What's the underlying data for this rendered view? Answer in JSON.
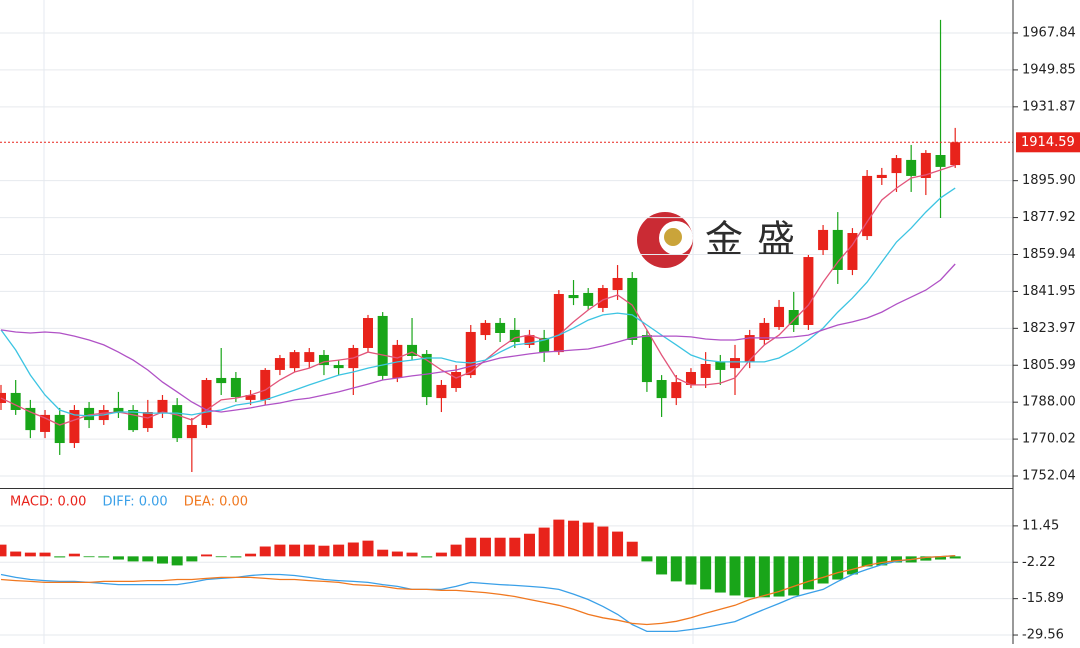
{
  "chart_data": [
    {
      "type": "candlestick",
      "watermark": "金盛",
      "ylim": [
        1746.2,
        1983.9
      ],
      "yticks": [
        1967.84,
        1949.85,
        1931.87,
        {
          "value": 1895.9,
          "label": "1895.90"
        },
        1877.92,
        1859.94,
        1841.95,
        1823.97,
        1805.99,
        {
          "value": 1788.0,
          "label": "1788.00"
        },
        1770.02,
        1752.04
      ],
      "grid": true,
      "up_color": "#e8231b",
      "down_color": "#19a519",
      "ohlc": {
        "open": [
          1787.6,
          1792.5,
          1785.2,
          1773.5,
          1781.8,
          1768.1,
          1785.2,
          1779.3,
          1785.2,
          1784.2,
          1775.4,
          1782.7,
          1786.6,
          1770.5,
          1776.9,
          1799.8,
          1799.8,
          1789.1,
          1789.1,
          1803.7,
          1804.6,
          1807.6,
          1811.0,
          1806.1,
          1804.6,
          1814.4,
          1830.0,
          1799.8,
          1815.9,
          1811.5,
          1790.0,
          1794.9,
          1801.2,
          1820.7,
          1826.6,
          1823.2,
          1815.9,
          1819.3,
          1812.4,
          1840.2,
          1841.2,
          1833.9,
          1842.6,
          1848.5,
          1820.7,
          1798.8,
          1790.0,
          1796.4,
          1799.8,
          1807.6,
          1804.6,
          1807.6,
          1818.3,
          1824.6,
          1832.9,
          1825.6,
          1862.1,
          1871.9,
          1852.4,
          1868.9,
          1897.2,
          1899.6,
          1906.0,
          1897.2,
          1908.4,
          1903.5
        ],
        "high": [
          1796.4,
          1798.8,
          1789.1,
          1784.2,
          1785.2,
          1786.6,
          1788.1,
          1786.6,
          1793.0,
          1786.6,
          1789.1,
          1791.5,
          1790.0,
          1780.3,
          1799.8,
          1814.4,
          1802.7,
          1793.9,
          1804.6,
          1811.0,
          1813.4,
          1814.4,
          1813.4,
          1808.5,
          1815.9,
          1830.5,
          1831.9,
          1818.3,
          1829.0,
          1813.4,
          1798.8,
          1806.1,
          1825.6,
          1828.0,
          1829.0,
          1829.0,
          1823.2,
          1823.2,
          1842.6,
          1847.5,
          1843.6,
          1845.1,
          1854.8,
          1851.4,
          1823.2,
          1801.2,
          1801.2,
          1804.6,
          1812.4,
          1811.0,
          1815.9,
          1823.2,
          1829.0,
          1837.8,
          1841.7,
          1859.7,
          1874.3,
          1880.6,
          1872.8,
          1901.1,
          1902.1,
          1908.4,
          1913.3,
          1910.8,
          1974.2,
          1921.6
        ],
        "low": [
          1784.2,
          1781.8,
          1770.5,
          1770.5,
          1762.3,
          1765.7,
          1775.4,
          1776.9,
          1780.3,
          1773.5,
          1773.5,
          1780.3,
          1768.6,
          1754.0,
          1775.4,
          1791.5,
          1788.1,
          1786.6,
          1786.6,
          1801.2,
          1802.7,
          1804.6,
          1801.2,
          1801.2,
          1791.5,
          1812.4,
          1798.8,
          1797.8,
          1808.5,
          1786.6,
          1783.2,
          1793.0,
          1799.8,
          1818.3,
          1817.3,
          1814.4,
          1814.4,
          1807.6,
          1811.0,
          1835.3,
          1832.9,
          1831.9,
          1837.8,
          1815.9,
          1793.0,
          1780.8,
          1786.6,
          1794.9,
          1794.9,
          1796.4,
          1791.5,
          1804.6,
          1815.9,
          1823.2,
          1822.2,
          1823.2,
          1859.7,
          1845.6,
          1849.9,
          1867.0,
          1893.8,
          1890.4,
          1890.4,
          1888.9,
          1877.7,
          1902.1
        ],
        "close": [
          1792.5,
          1784.2,
          1774.4,
          1781.8,
          1768.1,
          1784.2,
          1779.3,
          1784.2,
          1782.7,
          1774.4,
          1783.2,
          1789.1,
          1770.5,
          1776.9,
          1798.8,
          1797.3,
          1790.5,
          1791.5,
          1803.7,
          1809.5,
          1812.4,
          1812.4,
          1806.1,
          1804.6,
          1814.4,
          1829.0,
          1800.8,
          1815.9,
          1810.5,
          1790.5,
          1796.4,
          1802.7,
          1822.2,
          1826.6,
          1821.7,
          1817.3,
          1820.7,
          1812.4,
          1840.7,
          1838.7,
          1834.9,
          1843.6,
          1848.5,
          1818.3,
          1797.8,
          1790.0,
          1797.8,
          1802.7,
          1806.6,
          1803.7,
          1809.5,
          1820.7,
          1826.6,
          1834.4,
          1825.6,
          1858.7,
          1871.9,
          1852.4,
          1870.4,
          1898.2,
          1898.7,
          1906.9,
          1898.2,
          1909.4,
          1902.6,
          1914.59
        ]
      },
      "series": [
        {
          "color": "#e2557a",
          "values": [
            1790.0,
            1786.6,
            1783.2,
            1780.3,
            1776.9,
            1779.3,
            1781.8,
            1782.7,
            1783.2,
            1781.8,
            1780.3,
            1783.2,
            1781.8,
            1779.3,
            1784.2,
            1789.1,
            1790.0,
            1791.5,
            1793.9,
            1798.8,
            1802.7,
            1804.6,
            1807.6,
            1808.5,
            1809.5,
            1812.4,
            1811.0,
            1809.5,
            1812.4,
            1808.5,
            1803.7,
            1799.8,
            1802.7,
            1808.5,
            1814.4,
            1819.3,
            1820.7,
            1818.3,
            1820.7,
            1827.1,
            1832.9,
            1837.8,
            1840.2,
            1835.3,
            1823.2,
            1811.0,
            1799.8,
            1796.4,
            1796.4,
            1797.3,
            1799.8,
            1808.5,
            1815.9,
            1820.7,
            1828.0,
            1835.3,
            1846.5,
            1856.3,
            1864.6,
            1875.8,
            1886.5,
            1892.3,
            1897.2,
            1898.7,
            1901.1,
            1903.5
          ]
        },
        {
          "color": "#3cc4e2",
          "values": [
            1823.2,
            1813.4,
            1801.2,
            1791.5,
            1784.2,
            1781.8,
            1781.3,
            1781.8,
            1783.2,
            1783.2,
            1782.7,
            1782.7,
            1782.7,
            1781.8,
            1783.2,
            1784.2,
            1786.6,
            1787.6,
            1789.1,
            1791.5,
            1793.9,
            1796.4,
            1798.8,
            1801.2,
            1802.7,
            1804.6,
            1806.1,
            1807.6,
            1808.5,
            1809.5,
            1809.5,
            1807.6,
            1807.1,
            1808.5,
            1812.4,
            1815.9,
            1816.8,
            1818.3,
            1820.7,
            1824.1,
            1828.0,
            1830.5,
            1831.4,
            1830.5,
            1825.6,
            1820.7,
            1815.9,
            1811.0,
            1808.5,
            1807.6,
            1807.6,
            1807.6,
            1807.6,
            1809.5,
            1813.4,
            1818.3,
            1824.1,
            1831.9,
            1838.7,
            1846.5,
            1856.3,
            1866.0,
            1872.8,
            1880.6,
            1887.5,
            1892.3
          ]
        },
        {
          "color": "#b052c6",
          "values": [
            1823.2,
            1822.2,
            1821.7,
            1822.2,
            1821.7,
            1820.2,
            1818.3,
            1815.9,
            1812.4,
            1808.5,
            1803.7,
            1797.8,
            1793.0,
            1788.1,
            1784.2,
            1783.2,
            1784.2,
            1785.2,
            1786.6,
            1787.6,
            1789.1,
            1790.0,
            1791.5,
            1793.0,
            1794.9,
            1796.8,
            1798.8,
            1799.8,
            1800.8,
            1801.7,
            1802.7,
            1803.7,
            1805.6,
            1807.6,
            1809.5,
            1810.5,
            1811.5,
            1812.4,
            1812.9,
            1813.4,
            1813.9,
            1815.4,
            1817.3,
            1819.3,
            1820.2,
            1820.2,
            1820.2,
            1819.8,
            1818.8,
            1818.3,
            1818.3,
            1819.3,
            1819.3,
            1819.3,
            1819.8,
            1820.7,
            1823.2,
            1825.6,
            1827.1,
            1829.0,
            1831.9,
            1835.8,
            1839.2,
            1842.6,
            1847.5,
            1855.3
          ]
        }
      ]
    },
    {
      "type": "macd",
      "legend": [
        "MACD: 0.00",
        "DIFF: 0.00",
        "DEA: 0.00"
      ],
      "legend_colors": [
        "#e8231b",
        "#3aa0e8",
        "#f07820"
      ],
      "ylim": [
        -32.93,
        24.93
      ],
      "yticks": [
        11.45,
        -2.22,
        -15.89,
        -29.56
      ],
      "grid": true,
      "up_color": "#e8231b",
      "down_color": "#19a519",
      "histogram": [
        4.4,
        1.8,
        1.4,
        1.4,
        -0.4,
        1.0,
        -0.2,
        -0.4,
        -1.2,
        -1.9,
        -1.9,
        -2.7,
        -3.4,
        -1.9,
        0.7,
        -0.2,
        -0.4,
        1.0,
        3.7,
        4.4,
        4.4,
        4.4,
        4.0,
        4.4,
        5.2,
        5.9,
        2.5,
        1.8,
        1.4,
        -0.4,
        1.4,
        4.4,
        7.0,
        7.0,
        7.0,
        7.0,
        8.5,
        10.8,
        13.8,
        13.4,
        12.7,
        11.2,
        9.3,
        5.5,
        -1.9,
        -6.8,
        -9.4,
        -10.6,
        -12.4,
        -13.6,
        -14.7,
        -15.4,
        -15.4,
        -15.1,
        -14.7,
        -12.4,
        -10.2,
        -8.7,
        -6.8,
        -3.8,
        -3.4,
        -2.3,
        -2.3,
        -1.6,
        -1.2,
        -0.8
      ],
      "series": [
        {
          "color": "#3aa0e8",
          "values": [
            -6.8,
            -7.9,
            -8.7,
            -9.1,
            -9.4,
            -9.4,
            -9.8,
            -10.2,
            -10.6,
            -10.6,
            -10.6,
            -10.6,
            -10.6,
            -9.8,
            -8.7,
            -8.3,
            -7.9,
            -7.2,
            -6.8,
            -6.8,
            -7.2,
            -7.9,
            -8.7,
            -9.1,
            -9.4,
            -9.8,
            -10.6,
            -11.3,
            -12.4,
            -12.4,
            -12.4,
            -11.3,
            -9.8,
            -10.2,
            -10.6,
            -10.9,
            -11.3,
            -11.7,
            -12.4,
            -14.2,
            -16.2,
            -18.8,
            -21.8,
            -25.6,
            -28.2,
            -28.2,
            -28.2,
            -27.5,
            -26.7,
            -25.6,
            -24.5,
            -22.2,
            -19.9,
            -17.7,
            -15.4,
            -13.9,
            -12.4,
            -9.4,
            -6.8,
            -4.9,
            -3.1,
            -1.9,
            -1.2,
            -0.4,
            -0.1,
            0.3
          ]
        },
        {
          "color": "#f07820",
          "values": [
            -8.7,
            -9.1,
            -9.4,
            -9.8,
            -9.8,
            -9.8,
            -9.8,
            -9.4,
            -9.4,
            -9.4,
            -9.1,
            -9.1,
            -8.7,
            -8.7,
            -8.3,
            -7.9,
            -7.9,
            -7.9,
            -8.3,
            -8.7,
            -8.7,
            -9.1,
            -9.4,
            -9.8,
            -10.6,
            -10.9,
            -11.3,
            -12.1,
            -12.4,
            -12.4,
            -12.8,
            -12.8,
            -13.2,
            -13.6,
            -14.3,
            -15.1,
            -16.2,
            -17.3,
            -18.4,
            -19.9,
            -21.8,
            -23.1,
            -24.0,
            -25.2,
            -25.6,
            -25.2,
            -24.4,
            -23.1,
            -21.4,
            -19.9,
            -18.4,
            -16.2,
            -14.7,
            -13.2,
            -11.3,
            -9.4,
            -7.9,
            -6.1,
            -4.9,
            -3.4,
            -2.3,
            -1.6,
            -1.2,
            -0.4,
            -0.1,
            0.3
          ]
        }
      ]
    }
  ]
}
